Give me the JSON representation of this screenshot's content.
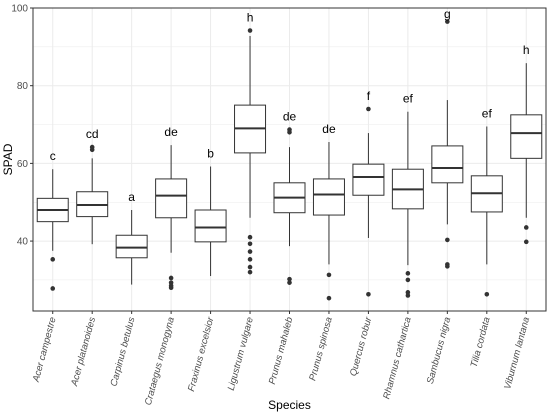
{
  "chart_data": {
    "type": "boxplot",
    "xlabel": "Species",
    "ylabel": "SPAD",
    "ylim": [
      22,
      100
    ],
    "yticks": [
      40,
      60,
      80,
      100
    ],
    "grid": true,
    "theme": "bw",
    "colors": {
      "box_fill": "#ffffff",
      "box_stroke": "#333333",
      "median": "#333333",
      "grid": "#ebebeb",
      "panel_border": "#333333",
      "outlier": "#333333"
    },
    "categories": [
      "Acer campestre",
      "Acer platanoides",
      "Carpinus betulus",
      "Crataegus monogyna",
      "Fraxinus excelsior",
      "Ligustrum vulgare",
      "Prunus mahaleb",
      "Prunus spinosa",
      "Quercus robur",
      "Rhamnus cathartica",
      "Sambucus nigra",
      "Tilia cordata",
      "Viburnum lantana"
    ],
    "boxes": [
      {
        "name": "Acer campestre",
        "whisker_low": 37.5,
        "q1": 45,
        "median": 48,
        "q3": 51,
        "whisker_high": 58.5,
        "outliers": [
          35.3,
          27.8
        ],
        "letter": "c"
      },
      {
        "name": "Acer platanoides",
        "whisker_low": 39.2,
        "q1": 46.3,
        "median": 49.3,
        "q3": 52.7,
        "whisker_high": 61.3,
        "outliers": [
          63.5,
          64.2
        ],
        "letter": "cd"
      },
      {
        "name": "Carpinus betulus",
        "whisker_low": 28.8,
        "q1": 35.7,
        "median": 38.3,
        "q3": 41.5,
        "whisker_high": 48,
        "outliers": [],
        "letter": "a"
      },
      {
        "name": "Crataegus monogyna",
        "whisker_low": 37,
        "q1": 46,
        "median": 51.7,
        "q3": 56,
        "whisker_high": 64.7,
        "outliers": [
          30.5,
          29.3,
          28.5,
          28
        ],
        "letter": "de"
      },
      {
        "name": "Fraxinus excelsior",
        "whisker_low": 31,
        "q1": 39.8,
        "median": 43.5,
        "q3": 48,
        "whisker_high": 59.2,
        "outliers": [],
        "letter": "b"
      },
      {
        "name": "Ligustrum vulgare",
        "whisker_low": 46,
        "q1": 62.7,
        "median": 69,
        "q3": 75,
        "whisker_high": 92.8,
        "outliers": [
          94.2,
          41,
          39.3,
          37.3,
          35.3,
          33.3,
          32
        ],
        "letter": "h"
      },
      {
        "name": "Prunus mahaleb",
        "whisker_low": 38.7,
        "q1": 47.3,
        "median": 51.2,
        "q3": 55,
        "whisker_high": 64.2,
        "outliers": [
          68.7,
          68,
          30.2,
          29.3
        ],
        "letter": "de"
      },
      {
        "name": "Prunus spinosa",
        "whisker_low": 34,
        "q1": 46.7,
        "median": 52,
        "q3": 56,
        "whisker_high": 65.5,
        "outliers": [
          31.3,
          25.3
        ],
        "letter": "de"
      },
      {
        "name": "Quercus robur",
        "whisker_low": 40.8,
        "q1": 51.8,
        "median": 56.5,
        "q3": 59.8,
        "whisker_high": 67.8,
        "outliers": [
          74,
          26.3
        ],
        "letter": "f"
      },
      {
        "name": "Rhamnus cathartica",
        "whisker_low": 33.8,
        "q1": 48.3,
        "median": 53.3,
        "q3": 58.5,
        "whisker_high": 73.3,
        "outliers": [
          31.7,
          30,
          26.8,
          26
        ],
        "letter": "ef"
      },
      {
        "name": "Sambucus nigra",
        "whisker_low": 44.3,
        "q1": 55,
        "median": 58.8,
        "q3": 64.5,
        "whisker_high": 76.3,
        "outliers": [
          96.5,
          40.3,
          34,
          33.5
        ],
        "letter": "g"
      },
      {
        "name": "Tilia cordata",
        "whisker_low": 34,
        "q1": 47.5,
        "median": 52.3,
        "q3": 56.8,
        "whisker_high": 69.5,
        "outliers": [
          26.3
        ],
        "letter": "ef"
      },
      {
        "name": "Viburnum lantana",
        "whisker_low": 46,
        "q1": 61.3,
        "median": 67.8,
        "q3": 72.5,
        "whisker_high": 85.8,
        "outliers": [
          43.5,
          39.8
        ],
        "letter": "h"
      }
    ]
  }
}
